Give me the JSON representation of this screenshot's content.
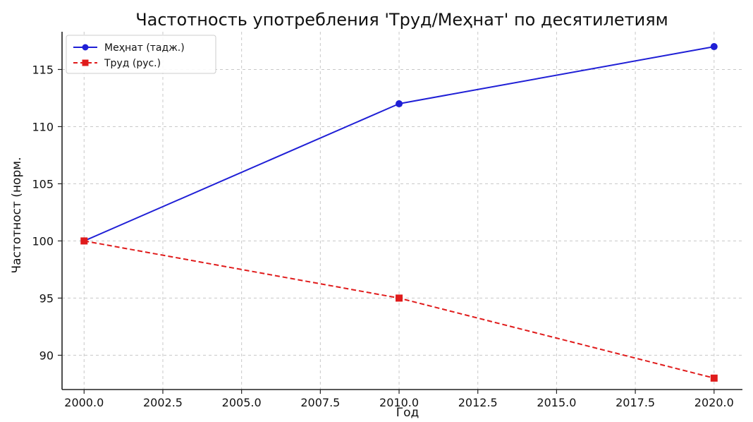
{
  "chart_data": {
    "type": "line",
    "title": "Частотность употребления 'Труд/Меҳнат' по десятилетиям",
    "xlabel": "Год",
    "ylabel": "Частотност (норм.",
    "x": [
      2000,
      2010,
      2020
    ],
    "xlim": [
      1999.3,
      2020.9
    ],
    "ylim": [
      87.0,
      118.3
    ],
    "xticks": [
      2000.0,
      2002.5,
      2005.0,
      2007.5,
      2010.0,
      2012.5,
      2015.0,
      2017.5,
      2020.0
    ],
    "xtick_labels": [
      "2000.0",
      "2002.5",
      "2005.0",
      "2007.5",
      "2010.0",
      "2012.5",
      "2015.0",
      "2017.5",
      "2020.0"
    ],
    "yticks": [
      90,
      95,
      100,
      105,
      110,
      115
    ],
    "ytick_labels": [
      "90",
      "95",
      "100",
      "105",
      "110",
      "115"
    ],
    "grid": true,
    "legend_position": "top-left",
    "series": [
      {
        "name": "Меҳнат (тадж.)",
        "values": [
          100,
          112,
          117
        ],
        "color": "#1f1fd6",
        "line_style": "solid",
        "marker": "circle"
      },
      {
        "name": "Труд (рус.)",
        "values": [
          100,
          95,
          88
        ],
        "color": "#e01b1b",
        "line_style": "dashed",
        "marker": "square"
      }
    ]
  }
}
